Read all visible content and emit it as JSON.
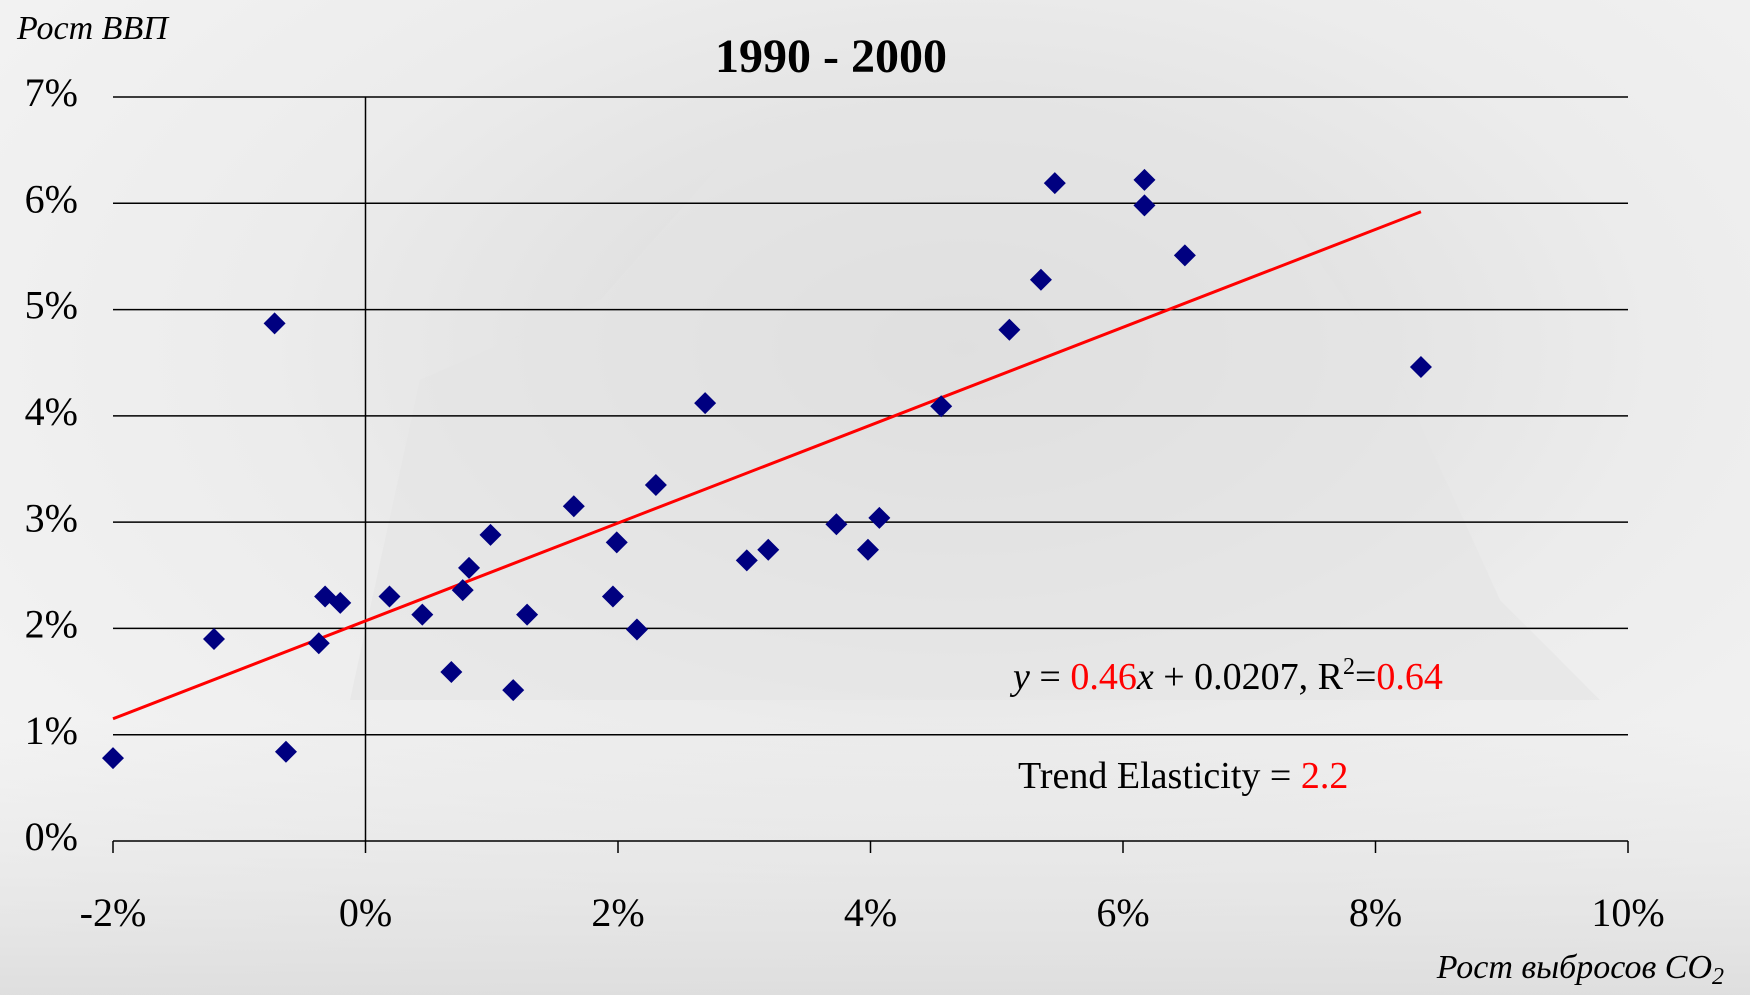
{
  "chart_data": {
    "type": "scatter",
    "title": "1990 - 2000",
    "y_label": "Рост ВВП",
    "x_label": {
      "text": "Рост выбросов CO",
      "sub": "2"
    },
    "xlim": [
      -2,
      10
    ],
    "ylim": [
      0,
      7
    ],
    "xticks": [
      {
        "value": -2,
        "label": "-2%"
      },
      {
        "value": 0,
        "label": "0%"
      },
      {
        "value": 2,
        "label": "2%"
      },
      {
        "value": 4,
        "label": "4%"
      },
      {
        "value": 6,
        "label": "6%"
      },
      {
        "value": 8,
        "label": "8%"
      },
      {
        "value": 10,
        "label": "10%"
      }
    ],
    "yticks": [
      {
        "value": 0,
        "label": "0%"
      },
      {
        "value": 1,
        "label": "1%"
      },
      {
        "value": 2,
        "label": "2%"
      },
      {
        "value": 3,
        "label": "3%"
      },
      {
        "value": 4,
        "label": "4%"
      },
      {
        "value": 5,
        "label": "5%"
      },
      {
        "value": 6,
        "label": "6%"
      },
      {
        "value": 7,
        "label": "7%"
      }
    ],
    "grid": true,
    "series": [
      {
        "color": "#000080",
        "x": [
          -2.0,
          -1.2,
          -0.72,
          -0.63,
          -0.37,
          -0.32,
          -0.2,
          0.19,
          0.45,
          0.68,
          0.77,
          0.82,
          0.99,
          1.17,
          1.28,
          1.65,
          1.96,
          1.99,
          2.15,
          2.3,
          2.69,
          3.02,
          3.19,
          3.73,
          3.98,
          4.07,
          4.56,
          5.1,
          5.35,
          5.46,
          6.17,
          6.17,
          6.49,
          8.36
        ],
        "values": [
          0.78,
          1.9,
          4.87,
          0.84,
          1.86,
          2.3,
          2.24,
          2.3,
          2.13,
          1.59,
          2.36,
          2.57,
          2.88,
          1.42,
          2.13,
          3.15,
          2.3,
          2.81,
          1.99,
          3.35,
          4.12,
          2.64,
          2.74,
          2.98,
          2.74,
          3.04,
          4.09,
          4.81,
          5.28,
          6.19,
          6.22,
          5.98,
          5.51,
          4.46
        ]
      }
    ],
    "trend": {
      "color": "#ff0000",
      "x": [
        -2,
        8.36
      ],
      "values": [
        1.15,
        5.92
      ]
    },
    "annotations": [
      {
        "parts": [
          {
            "text": "y",
            "italic": true
          },
          {
            "text": " = "
          },
          {
            "text": "0.46",
            "color": "#ff0000"
          },
          {
            "text": "x",
            "italic": true
          },
          {
            "text": " + 0.0207, R"
          },
          {
            "text": "2",
            "sup": true
          },
          {
            "text": "="
          },
          {
            "text": "0.64",
            "color": "#ff0000"
          }
        ]
      },
      {
        "parts": [
          {
            "text": "Trend Elasticity = "
          },
          {
            "text": "2.2",
            "color": "#ff0000"
          }
        ]
      }
    ]
  }
}
